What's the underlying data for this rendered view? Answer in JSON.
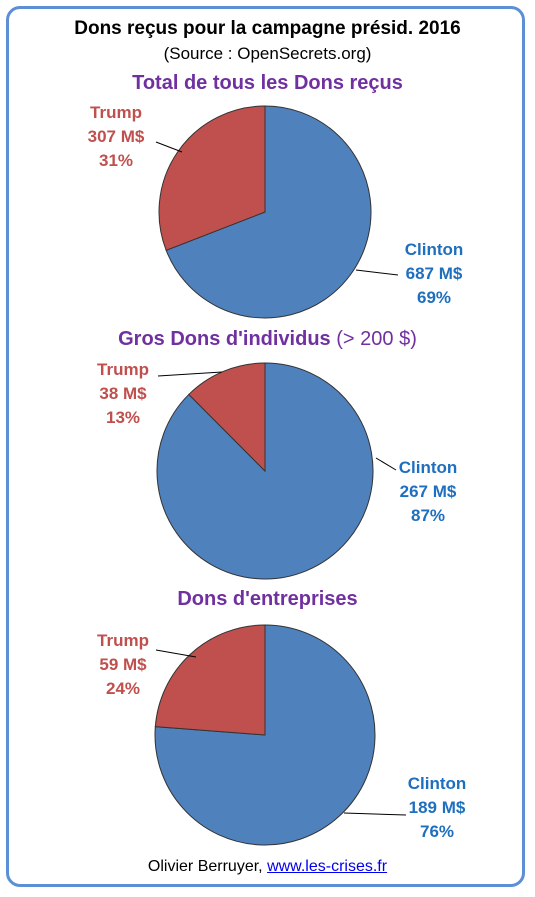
{
  "header": {
    "title": "Dons reçus pour la campagne présid. 2016",
    "source": "(Source : OpenSecrets.org)"
  },
  "footer": {
    "author": "Olivier Berruyer,",
    "link": "www.les-crises.fr"
  },
  "colors": {
    "clinton": "#4f81bd",
    "trump": "#c0504d",
    "clinton_text": "#1f6fbf",
    "trump_text": "#c0504d",
    "title": "#7030a0"
  },
  "chart_data": [
    {
      "type": "pie",
      "title": "Total de tous les Dons reçus",
      "title_suffix": "",
      "slices": [
        {
          "name": "Clinton",
          "value": 687,
          "label": "687 M$",
          "pct": "69%"
        },
        {
          "name": "Trump",
          "value": 307,
          "label": "307 M$",
          "pct": "31%"
        }
      ]
    },
    {
      "type": "pie",
      "title": "Gros Dons d'individus",
      "title_suffix": "(> 200 $)",
      "slices": [
        {
          "name": "Clinton",
          "value": 267,
          "label": "267 M$",
          "pct": "87%"
        },
        {
          "name": "Trump",
          "value": 38,
          "label": "38 M$",
          "pct": "13%"
        }
      ]
    },
    {
      "type": "pie",
      "title": "Dons d'entreprises",
      "title_suffix": "",
      "slices": [
        {
          "name": "Clinton",
          "value": 189,
          "label": "189 M$",
          "pct": "76%"
        },
        {
          "name": "Trump",
          "value": 59,
          "label": "59 M$",
          "pct": "24%"
        }
      ]
    }
  ]
}
